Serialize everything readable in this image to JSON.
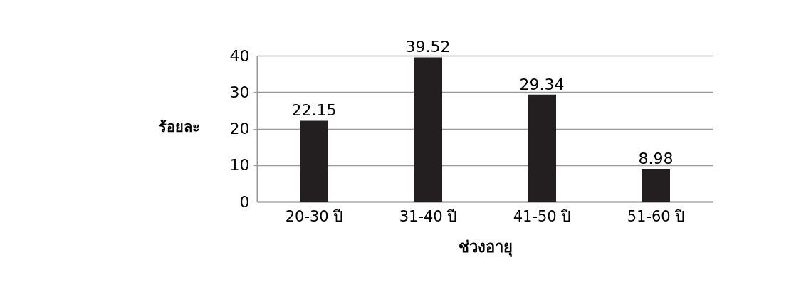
{
  "chart_data": {
    "type": "bar",
    "xlabel": "ช่วงอายุ",
    "ylabel": "ร้อยละ",
    "categories": [
      "20-30 ปี",
      "31-40 ปี",
      "41-50 ปี",
      "51-60 ปี"
    ],
    "values": [
      22.15,
      39.52,
      29.34,
      8.98
    ],
    "color": "#231f20",
    "ylim": [
      0,
      40
    ],
    "yticks": [
      0,
      10,
      20,
      30,
      40
    ],
    "grid": "y",
    "data_labels": true
  }
}
